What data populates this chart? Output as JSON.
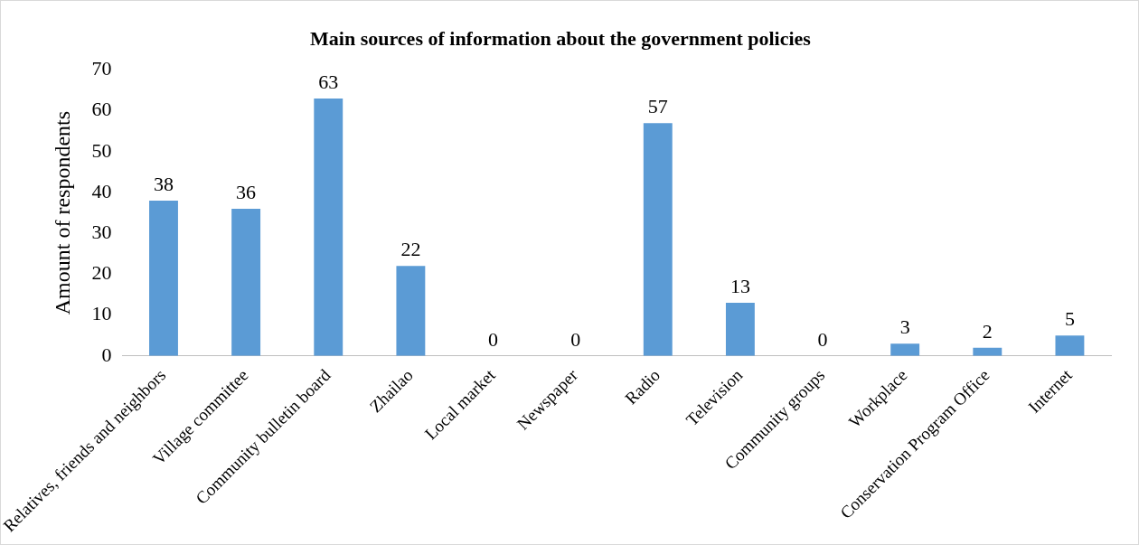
{
  "chart_data": {
    "type": "bar",
    "title": "Main sources of information about the government policies",
    "ylabel": "Amount of respondents",
    "categories": [
      "Relatives, friends and neighbors",
      "Village committee",
      "Community bulletin board",
      "Zhailao",
      "Local market",
      "Newspaper",
      "Radio",
      "Television",
      "Community groups",
      "Workplace",
      "Conservation Program Office",
      "Internet"
    ],
    "values": [
      38,
      36,
      63,
      22,
      0,
      0,
      57,
      13,
      0,
      3,
      2,
      5
    ],
    "color": "#5b9bd5",
    "ylim": [
      0,
      70
    ],
    "yticks": [
      0,
      10,
      20,
      30,
      40,
      50,
      60,
      70
    ],
    "grid": false,
    "legend": false,
    "data_labels": true
  }
}
